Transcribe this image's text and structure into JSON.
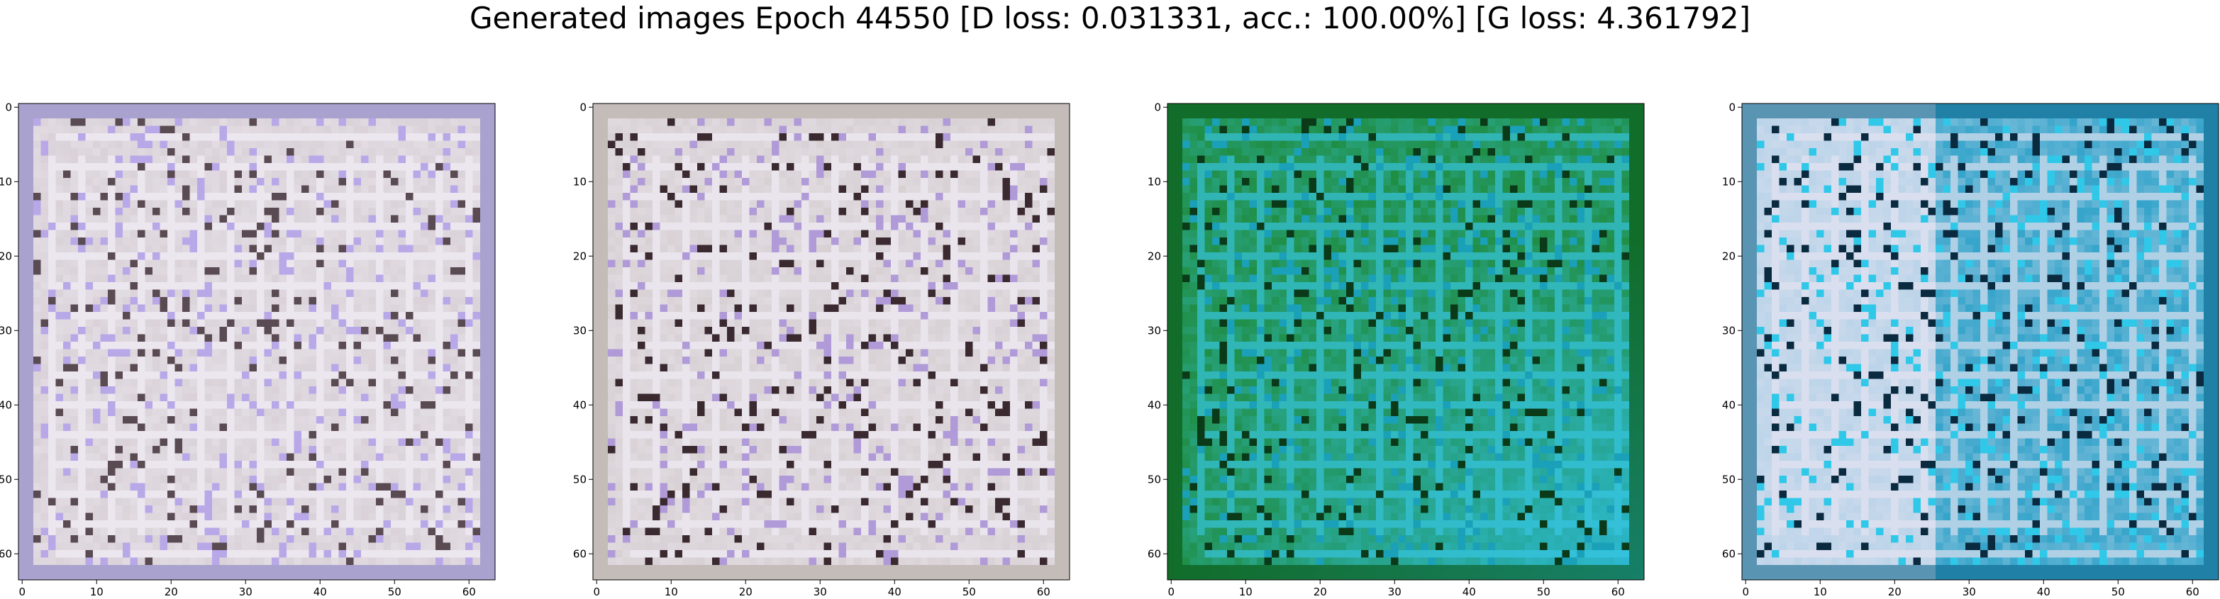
{
  "figure": {
    "title": "Generated images Epoch 44550 [D loss: 0.031331, acc.: 100.00%] [G loss: 4.361792]"
  },
  "axes": {
    "x_ticks": [
      "0",
      "10",
      "20",
      "30",
      "40",
      "50",
      "60"
    ],
    "y_ticks": [
      "0",
      "10",
      "20",
      "30",
      "40",
      "50",
      "60"
    ],
    "image_size": 64
  },
  "images": [
    {
      "palette": "pale-lavender",
      "base": "#d8d0d6",
      "bright": "#f4f0fa",
      "accent": "#b8a8e8",
      "dark": "#5a4a52",
      "border": "#8a84c8"
    },
    {
      "palette": "pale-lavender",
      "base": "#d6cfd2",
      "bright": "#f2eef8",
      "accent": "#b09ad8",
      "dark": "#3a2a30",
      "border": "#b8b0a8"
    },
    {
      "palette": "green-cyan",
      "base": "#1e8a3a",
      "bright": "#38c8e8",
      "accent": "#1aa0b8",
      "dark": "#0a3a18",
      "border": "#0a5a20"
    },
    {
      "palette": "lavender-cyan",
      "base": "#2aa0c8",
      "bright": "#e8e4f2",
      "accent": "#30c8e8",
      "dark": "#0a2a40",
      "border": "#1a6a90"
    }
  ]
}
